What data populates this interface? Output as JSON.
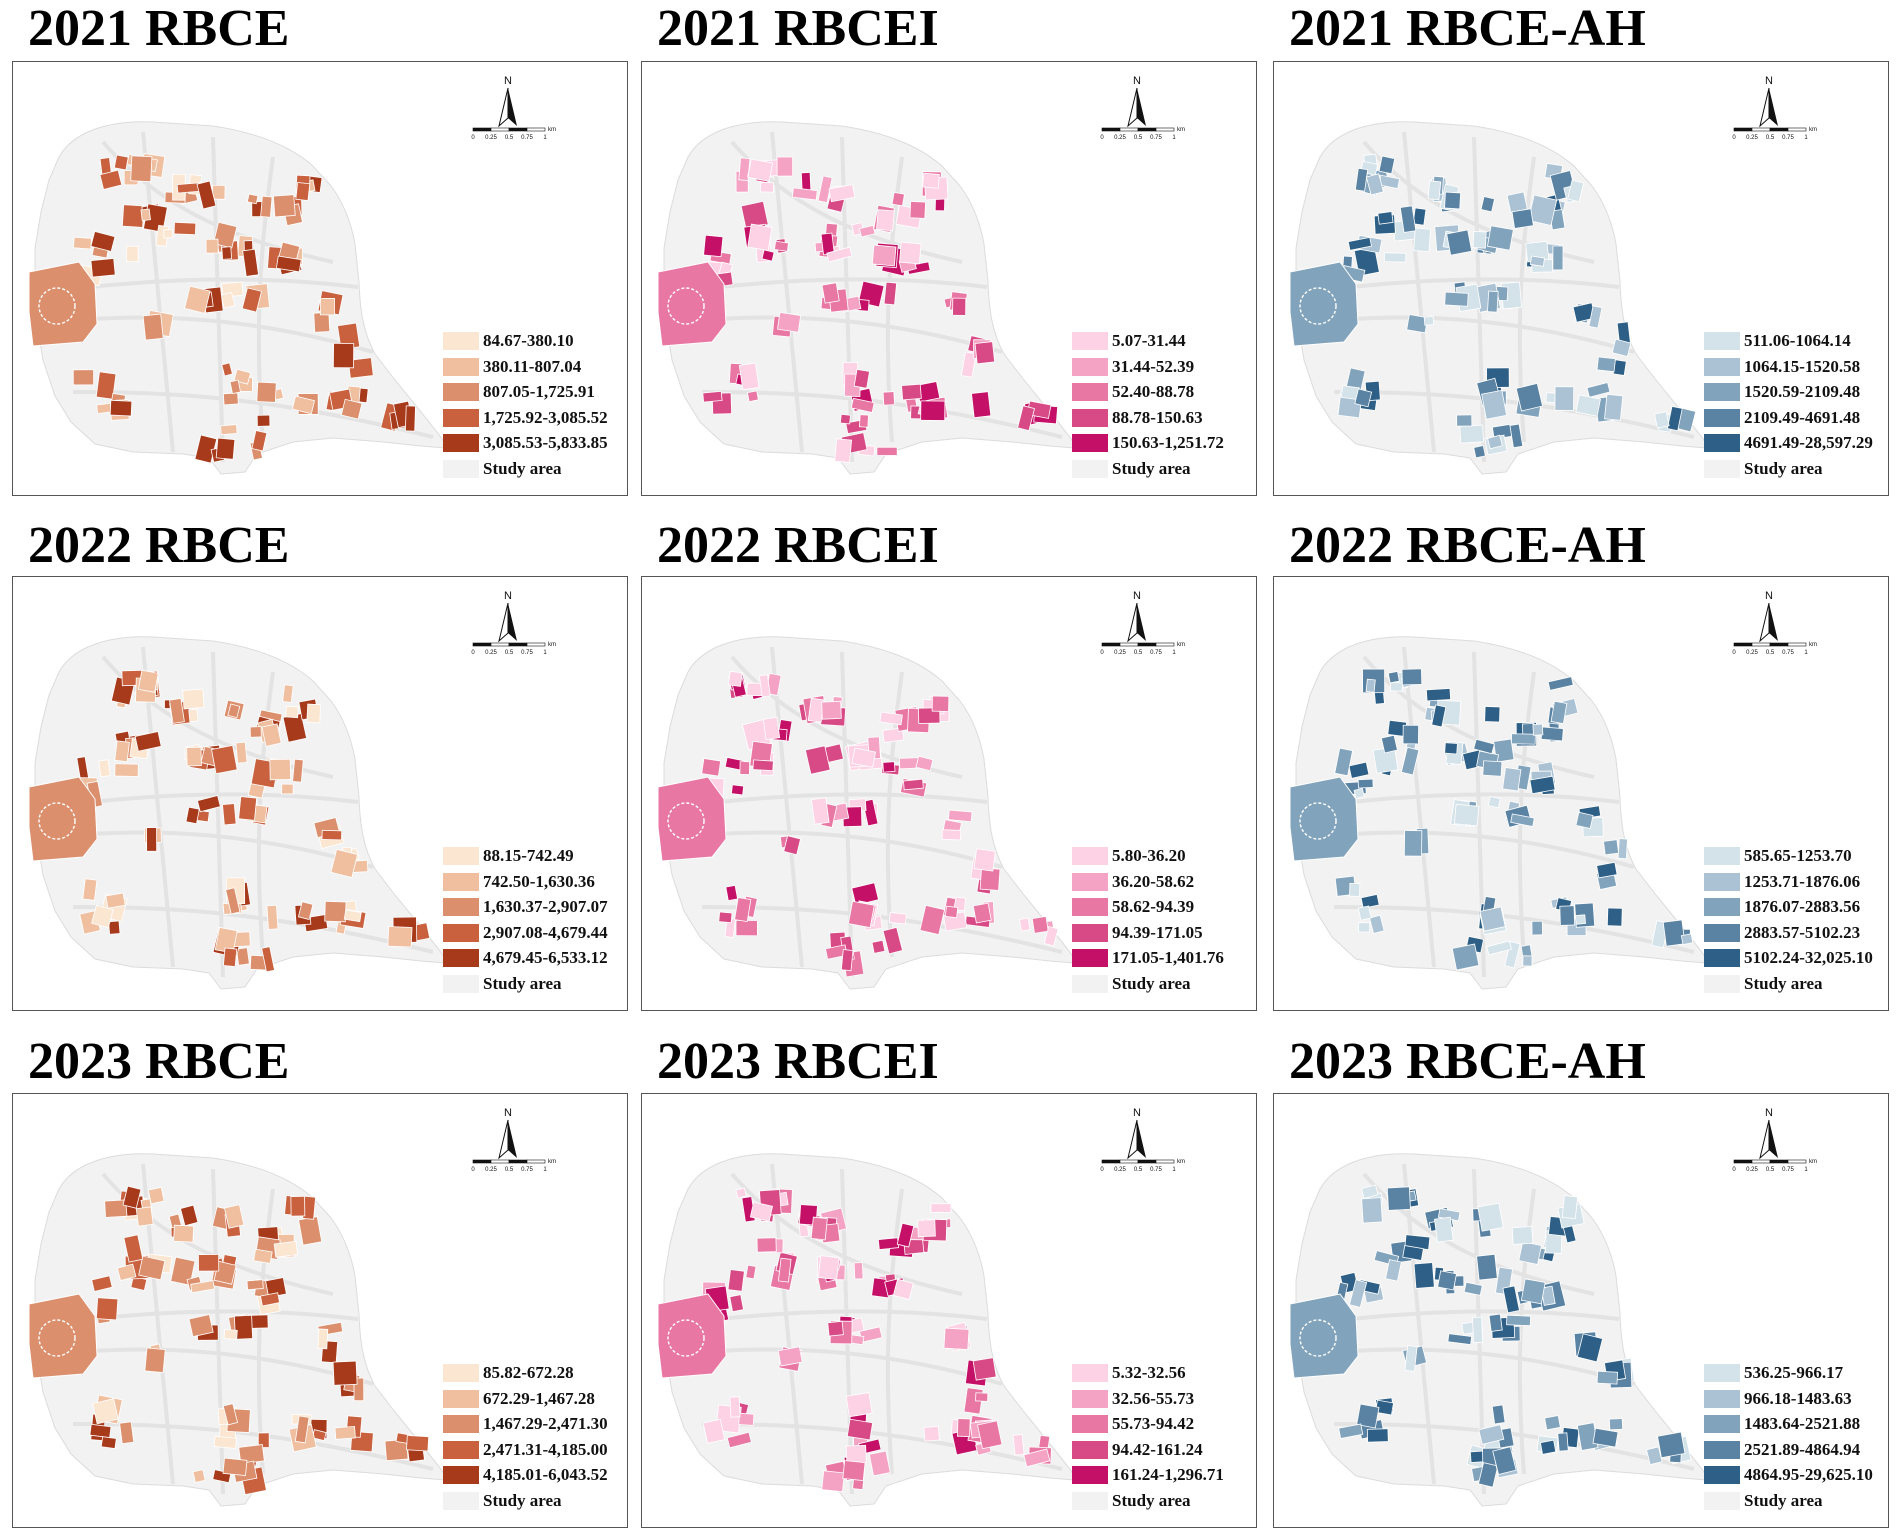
{
  "study_area_color": "#f2f2f2",
  "road_color": "#e3e3e3",
  "compass": {
    "north_label": "N",
    "unit": "km",
    "ticks": [
      "0",
      "0.25",
      "0.5",
      "0.75",
      "1"
    ]
  },
  "panels": [
    {
      "title": "2021 RBCE",
      "palette": [
        "#fbe6d2",
        "#efbfa0",
        "#dc8f6d",
        "#c9613f",
        "#a83a1c"
      ],
      "classes": [
        "84.67-380.10",
        "380.11-807.04",
        "807.05-1,725.91",
        "1,725.92-3,085.52",
        "3,085.53-5,833.85"
      ],
      "study_area_label": "Study area",
      "seed": 11
    },
    {
      "title": "2021 RBCEI",
      "palette": [
        "#fcd2e4",
        "#f5a3c4",
        "#e977a4",
        "#d84a86",
        "#c51067"
      ],
      "classes": [
        "5.07-31.44",
        "31.44-52.39",
        "52.40-88.78",
        "88.78-150.63",
        "150.63-1,251.72"
      ],
      "study_area_label": "Study area",
      "seed": 23
    },
    {
      "title": "2021 RBCE-AH",
      "palette": [
        "#d4e2ea",
        "#aac2d3",
        "#82a3bc",
        "#5a83a3",
        "#2e5f86"
      ],
      "classes": [
        "511.06-1064.14",
        "1064.15-1520.58",
        "1520.59-2109.48",
        "2109.49-4691.48",
        "4691.49-28,597.29"
      ],
      "study_area_label": "Study area",
      "seed": 37
    },
    {
      "title": "2022 RBCE",
      "palette": [
        "#fbe6d2",
        "#efbfa0",
        "#dc8f6d",
        "#c9613f",
        "#a83a1c"
      ],
      "classes": [
        "88.15-742.49",
        "742.50-1,630.36",
        "1,630.37-2,907.07",
        "2,907.08-4,679.44",
        "4,679.45-6,533.12"
      ],
      "study_area_label": "Study area",
      "seed": 41
    },
    {
      "title": "2022 RBCEI",
      "palette": [
        "#fcd2e4",
        "#f5a3c4",
        "#e977a4",
        "#d84a86",
        "#c51067"
      ],
      "classes": [
        "5.80-36.20",
        "36.20-58.62",
        "58.62-94.39",
        "94.39-171.05",
        "171.05-1,401.76"
      ],
      "study_area_label": "Study area",
      "seed": 53
    },
    {
      "title": "2022 RBCE-AH",
      "palette": [
        "#d4e2ea",
        "#aac2d3",
        "#82a3bc",
        "#5a83a3",
        "#2e5f86"
      ],
      "classes": [
        "585.65-1253.70",
        "1253.71-1876.06",
        "1876.07-2883.56",
        "2883.57-5102.23",
        "5102.24-32,025.10"
      ],
      "study_area_label": "Study area",
      "seed": 67
    },
    {
      "title": "2023 RBCE",
      "palette": [
        "#fbe6d2",
        "#efbfa0",
        "#dc8f6d",
        "#c9613f",
        "#a83a1c"
      ],
      "classes": [
        "85.82-672.28",
        "672.29-1,467.28",
        "1,467.29-2,471.30",
        "2,471.31-4,185.00",
        "4,185.01-6,043.52"
      ],
      "study_area_label": "Study area",
      "seed": 71
    },
    {
      "title": "2023 RBCEI",
      "palette": [
        "#fcd2e4",
        "#f5a3c4",
        "#e977a4",
        "#d84a86",
        "#c51067"
      ],
      "classes": [
        "5.32-32.56",
        "32.56-55.73",
        "55.73-94.42",
        "94.42-161.24",
        "161.24-1,296.71"
      ],
      "study_area_label": "Study area",
      "seed": 83
    },
    {
      "title": "2023 RBCE-AH",
      "palette": [
        "#d4e2ea",
        "#aac2d3",
        "#82a3bc",
        "#5a83a3",
        "#2e5f86"
      ],
      "classes": [
        "536.25-966.17",
        "966.18-1483.63",
        "1483.64-2521.88",
        "2521.89-4864.94",
        "4864.95-29,625.10"
      ],
      "study_area_label": "Study area",
      "seed": 97
    }
  ]
}
